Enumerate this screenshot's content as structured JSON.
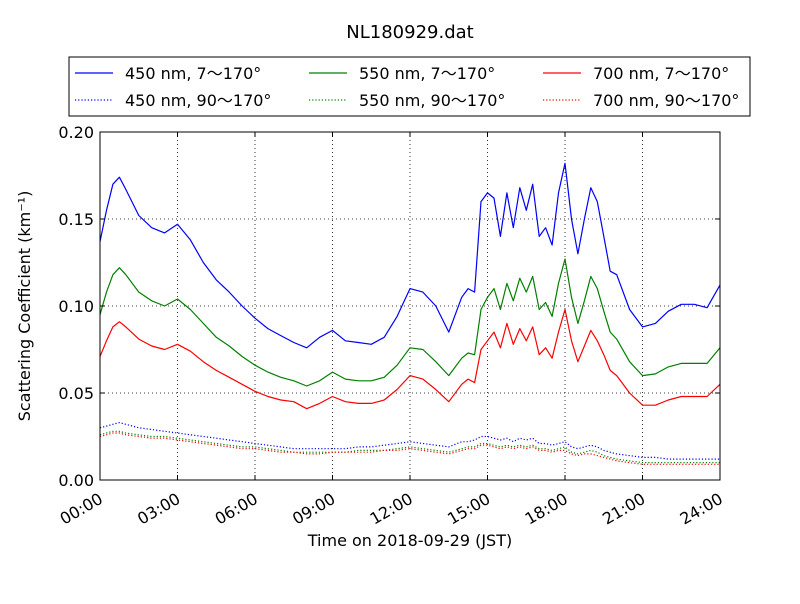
{
  "chart_data": {
    "type": "line",
    "title": "NL180929.dat",
    "xlabel": "Time on 2018-09-29 (JST)",
    "ylabel": "Scattering Coefficient (km⁻¹)",
    "x_unit": "hours",
    "xlim": [
      0,
      24
    ],
    "ylim": [
      0,
      0.2
    ],
    "x_ticks": [
      0,
      3,
      6,
      9,
      12,
      15,
      18,
      21,
      24
    ],
    "x_tick_labels": [
      "00:00",
      "03:00",
      "06:00",
      "09:00",
      "12:00",
      "15:00",
      "18:00",
      "21:00",
      "24:00"
    ],
    "y_ticks": [
      0,
      0.05,
      0.1,
      0.15,
      0.2
    ],
    "y_tick_labels": [
      "0.00",
      "0.05",
      "0.10",
      "0.15",
      "0.20"
    ],
    "grid": true,
    "legend_position": "top",
    "legend_columns": 3,
    "x": [
      0,
      0.25,
      0.5,
      0.75,
      1,
      1.5,
      2,
      2.5,
      3,
      3.5,
      4,
      4.5,
      5,
      5.5,
      6,
      6.5,
      7,
      7.5,
      8,
      8.5,
      9,
      9.5,
      10,
      10.5,
      11,
      11.5,
      12,
      12.5,
      13,
      13.5,
      14,
      14.25,
      14.5,
      14.75,
      15,
      15.25,
      15.5,
      15.75,
      16,
      16.25,
      16.5,
      16.75,
      17,
      17.25,
      17.5,
      17.75,
      18,
      18.25,
      18.5,
      18.75,
      19,
      19.25,
      19.5,
      19.75,
      20,
      20.5,
      21,
      21.5,
      22,
      22.5,
      23,
      23.5,
      24
    ],
    "series": [
      {
        "name": "450 nm, 7～170°",
        "color": "#0000ff",
        "style": "solid",
        "values": [
          0.137,
          0.155,
          0.17,
          0.174,
          0.167,
          0.152,
          0.145,
          0.142,
          0.147,
          0.138,
          0.125,
          0.115,
          0.108,
          0.1,
          0.093,
          0.087,
          0.083,
          0.079,
          0.076,
          0.082,
          0.086,
          0.08,
          0.079,
          0.078,
          0.082,
          0.094,
          0.11,
          0.108,
          0.1,
          0.085,
          0.105,
          0.11,
          0.108,
          0.16,
          0.165,
          0.162,
          0.14,
          0.165,
          0.145,
          0.168,
          0.155,
          0.17,
          0.14,
          0.145,
          0.135,
          0.165,
          0.182,
          0.15,
          0.13,
          0.15,
          0.168,
          0.16,
          0.14,
          0.12,
          0.118,
          0.098,
          0.088,
          0.09,
          0.097,
          0.101,
          0.101,
          0.099,
          0.112
        ]
      },
      {
        "name": "450 nm, 90～170°",
        "color": "#0000ff",
        "style": "dotted",
        "values": [
          0.03,
          0.031,
          0.032,
          0.033,
          0.032,
          0.03,
          0.029,
          0.028,
          0.027,
          0.026,
          0.025,
          0.024,
          0.023,
          0.022,
          0.021,
          0.02,
          0.019,
          0.018,
          0.018,
          0.018,
          0.018,
          0.018,
          0.019,
          0.019,
          0.02,
          0.021,
          0.022,
          0.021,
          0.02,
          0.019,
          0.022,
          0.022,
          0.023,
          0.025,
          0.025,
          0.024,
          0.023,
          0.024,
          0.022,
          0.024,
          0.023,
          0.024,
          0.021,
          0.021,
          0.02,
          0.021,
          0.022,
          0.019,
          0.018,
          0.019,
          0.02,
          0.019,
          0.017,
          0.016,
          0.015,
          0.014,
          0.013,
          0.013,
          0.012,
          0.012,
          0.012,
          0.012,
          0.012
        ]
      },
      {
        "name": "550 nm, 7～170°",
        "color": "#008000",
        "style": "solid",
        "values": [
          0.095,
          0.108,
          0.118,
          0.122,
          0.118,
          0.108,
          0.103,
          0.1,
          0.104,
          0.098,
          0.09,
          0.082,
          0.077,
          0.071,
          0.066,
          0.062,
          0.059,
          0.057,
          0.054,
          0.057,
          0.062,
          0.058,
          0.057,
          0.057,
          0.059,
          0.066,
          0.076,
          0.075,
          0.068,
          0.06,
          0.07,
          0.073,
          0.072,
          0.098,
          0.105,
          0.11,
          0.098,
          0.113,
          0.103,
          0.116,
          0.108,
          0.117,
          0.098,
          0.102,
          0.094,
          0.113,
          0.127,
          0.105,
          0.09,
          0.103,
          0.117,
          0.11,
          0.097,
          0.085,
          0.081,
          0.068,
          0.06,
          0.061,
          0.065,
          0.067,
          0.067,
          0.067,
          0.076
        ]
      },
      {
        "name": "550 nm, 90～170°",
        "color": "#008000",
        "style": "dotted",
        "values": [
          0.026,
          0.027,
          0.028,
          0.028,
          0.027,
          0.026,
          0.025,
          0.025,
          0.024,
          0.023,
          0.022,
          0.021,
          0.02,
          0.019,
          0.019,
          0.018,
          0.017,
          0.016,
          0.016,
          0.016,
          0.016,
          0.016,
          0.017,
          0.017,
          0.017,
          0.018,
          0.019,
          0.018,
          0.017,
          0.016,
          0.018,
          0.019,
          0.019,
          0.021,
          0.021,
          0.02,
          0.019,
          0.02,
          0.019,
          0.02,
          0.019,
          0.02,
          0.018,
          0.018,
          0.017,
          0.018,
          0.019,
          0.016,
          0.015,
          0.016,
          0.017,
          0.016,
          0.014,
          0.013,
          0.012,
          0.011,
          0.01,
          0.01,
          0.01,
          0.01,
          0.01,
          0.01,
          0.01
        ]
      },
      {
        "name": "700 nm, 7～170°",
        "color": "#ff0000",
        "style": "solid",
        "values": [
          0.071,
          0.08,
          0.088,
          0.091,
          0.088,
          0.081,
          0.077,
          0.075,
          0.078,
          0.074,
          0.068,
          0.063,
          0.059,
          0.055,
          0.051,
          0.048,
          0.046,
          0.045,
          0.041,
          0.044,
          0.048,
          0.045,
          0.044,
          0.044,
          0.046,
          0.052,
          0.06,
          0.058,
          0.052,
          0.045,
          0.055,
          0.058,
          0.056,
          0.075,
          0.08,
          0.085,
          0.076,
          0.09,
          0.078,
          0.087,
          0.08,
          0.088,
          0.072,
          0.076,
          0.07,
          0.085,
          0.098,
          0.08,
          0.068,
          0.077,
          0.086,
          0.08,
          0.072,
          0.063,
          0.06,
          0.05,
          0.043,
          0.043,
          0.046,
          0.048,
          0.048,
          0.048,
          0.055
        ]
      },
      {
        "name": "700 nm, 90～170°",
        "color": "#ff0000",
        "style": "dotted",
        "values": [
          0.025,
          0.026,
          0.027,
          0.027,
          0.026,
          0.025,
          0.024,
          0.024,
          0.023,
          0.022,
          0.021,
          0.02,
          0.019,
          0.018,
          0.018,
          0.017,
          0.016,
          0.016,
          0.015,
          0.015,
          0.016,
          0.016,
          0.016,
          0.016,
          0.017,
          0.017,
          0.018,
          0.017,
          0.016,
          0.015,
          0.017,
          0.018,
          0.018,
          0.02,
          0.02,
          0.019,
          0.018,
          0.019,
          0.018,
          0.019,
          0.018,
          0.019,
          0.017,
          0.017,
          0.016,
          0.017,
          0.017,
          0.015,
          0.014,
          0.015,
          0.015,
          0.014,
          0.013,
          0.012,
          0.011,
          0.01,
          0.009,
          0.009,
          0.009,
          0.009,
          0.009,
          0.009,
          0.009
        ]
      }
    ]
  }
}
